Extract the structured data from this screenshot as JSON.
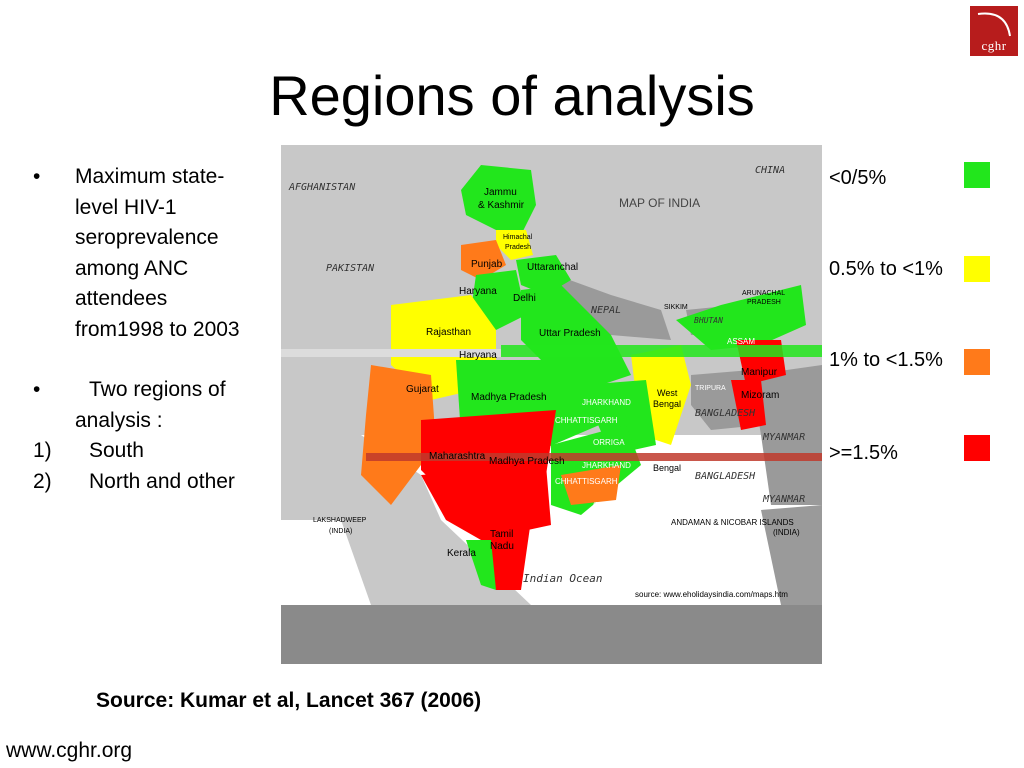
{
  "logo": {
    "text": "cghr"
  },
  "title": "Regions of analysis",
  "bullets": {
    "b1_marker": "•",
    "b1_lines": [
      "Maximum state-",
      "level HIV-1",
      "seroprevalence",
      "among ANC",
      "attendees",
      "from1998 to 2003"
    ],
    "b2_marker": "•",
    "b2_lines": [
      "Two regions of",
      "analysis :"
    ],
    "items": [
      {
        "num": "1)",
        "label": "South"
      },
      {
        "num": "2)",
        "label": "North and other"
      }
    ]
  },
  "map": {
    "title": "MAP OF INDIA",
    "countries": [
      "AFGHANISTAN",
      "PAKISTAN",
      "CHINA",
      "NEPAL",
      "BHUTAN",
      "BANGLADESH",
      "MYANMAR",
      "MYANMAR",
      "BANGLADESH"
    ],
    "states": [
      "Jammu",
      "& Kashmir",
      "Himachal",
      "Pradesh",
      "Punjab",
      "Uttaranchal",
      "Haryana",
      "Delhi",
      "Rajasthan",
      "Uttar Pradesh",
      "Haryana",
      "Gujarat",
      "Madhya Pradesh",
      "West",
      "Bengal",
      "JHARKHAND",
      "CHHATTISGARH",
      "ORRIGA",
      "Maharashtra",
      "Madhya Pradesh",
      "Bengal",
      "Tamil",
      "Nadu",
      "Kerala",
      "SIKKIM",
      "ARUNACHAL",
      "PRADESH",
      "ASSAM",
      "Manipur",
      "Mizoram",
      "TRIPURA",
      "ORRIGA",
      "JHARKHAND",
      "CHHATTISGARH"
    ],
    "ocean": "Indian Ocean",
    "islands": [
      "ANDAMAN & NICOBAR ISLANDS",
      "(INDIA)"
    ],
    "lakshadweep": [
      "LAKSHADWEEP",
      "(INDIA)"
    ],
    "credit": "source: www.eholidaysindia.com/maps.htm"
  },
  "legend": [
    {
      "label": "<0/5%",
      "color": "#22e61c"
    },
    {
      "label": "0.5% to <1%",
      "color": "#ffff00"
    },
    {
      "label": "1% to <1.5%",
      "color": "#ff7a1a"
    },
    {
      "label": ">=1.5%",
      "color": "#ff0000"
    }
  ],
  "source": "Source: Kumar et al, Lancet 367 (2006)",
  "website": "www.cghr.org"
}
